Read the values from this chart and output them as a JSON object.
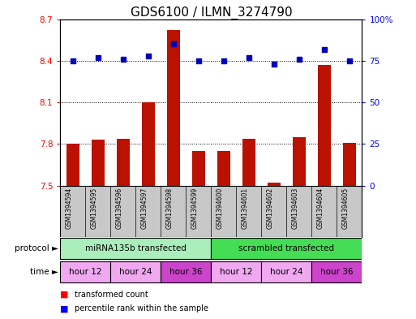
{
  "title": "GDS6100 / ILMN_3274790",
  "samples": [
    "GSM1394594",
    "GSM1394595",
    "GSM1394596",
    "GSM1394597",
    "GSM1394598",
    "GSM1394599",
    "GSM1394600",
    "GSM1394601",
    "GSM1394602",
    "GSM1394603",
    "GSM1394604",
    "GSM1394605"
  ],
  "red_values": [
    7.8,
    7.83,
    7.84,
    8.1,
    8.62,
    7.75,
    7.75,
    7.84,
    7.52,
    7.85,
    8.37,
    7.81
  ],
  "blue_values": [
    75,
    77,
    76,
    78,
    85,
    75,
    75,
    77,
    73,
    76,
    82,
    75
  ],
  "y_min": 7.5,
  "y_max": 8.7,
  "y_ticks_left": [
    7.5,
    7.8,
    8.1,
    8.4,
    8.7
  ],
  "y_ticks_right": [
    0,
    25,
    50,
    75,
    100
  ],
  "bar_color": "#bb1100",
  "dot_color": "#0000bb",
  "bar_width": 0.5,
  "dot_size": 22,
  "background_color": "#ffffff",
  "plot_bg_color": "#ffffff",
  "sample_bg_color": "#c8c8c8",
  "proto_color_1": "#aaeebb",
  "proto_color_2": "#44dd55",
  "time_color_light": "#f0a8f0",
  "time_color_dark": "#cc44cc",
  "legend_red_label": "transformed count",
  "legend_blue_label": "percentile rank within the sample",
  "protocol_label": "protocol",
  "time_label": "time",
  "title_fontsize": 11,
  "tick_fontsize": 7.5,
  "sample_fontsize": 5.5,
  "row_fontsize": 7.5
}
